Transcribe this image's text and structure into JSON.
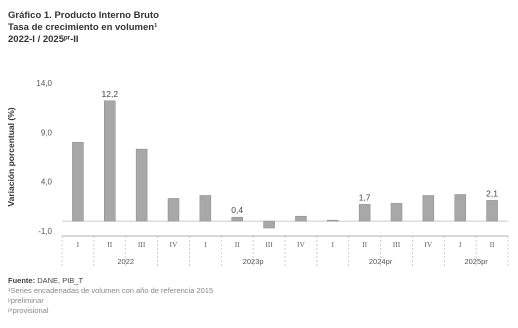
{
  "header": {
    "title": "Gráfico 1. Producto Interno Bruto",
    "subtitle": "Tasa de crecimiento en volumen¹",
    "period": "2022-I / 2025ᵖʳ-II"
  },
  "chart_data": {
    "type": "bar",
    "ylabel": "Variación porcentual (%)",
    "xlabel": "",
    "ylim": [
      -1.0,
      14.0
    ],
    "yticks": [
      "14,0",
      "9,0",
      "4,0",
      "-1,0"
    ],
    "ytick_values": [
      14.0,
      9.0,
      4.0,
      -1.0
    ],
    "categories": [
      "I",
      "II",
      "III",
      "IV",
      "I",
      "II",
      "III",
      "IV",
      "I",
      "II",
      "III",
      "IV",
      "I",
      "II"
    ],
    "years": [
      {
        "label": "2022",
        "count": 4
      },
      {
        "label": "2023p",
        "count": 4
      },
      {
        "label": "2024pr",
        "count": 4
      },
      {
        "label": "2025pr",
        "count": 2
      }
    ],
    "values": [
      8.0,
      12.2,
      7.3,
      2.3,
      2.6,
      0.4,
      -0.7,
      0.5,
      0.1,
      1.7,
      1.8,
      2.6,
      2.7,
      2.1
    ],
    "data_labels": [
      {
        "index": 1,
        "text": "12,2"
      },
      {
        "index": 5,
        "text": "0,4"
      },
      {
        "index": 9,
        "text": "1,7"
      },
      {
        "index": 13,
        "text": "2,1"
      }
    ],
    "bar_color": "#a8a8a8",
    "grid": false
  },
  "notes": {
    "source_label": "Fuente:",
    "source_text": "DANE, PIB_T",
    "footnote_1": "¹Series encadenadas de volumen con año de referencia 2015",
    "footnote_p": "ᵖpreliminar",
    "footnote_pr": "ᵖʳprovisional"
  }
}
